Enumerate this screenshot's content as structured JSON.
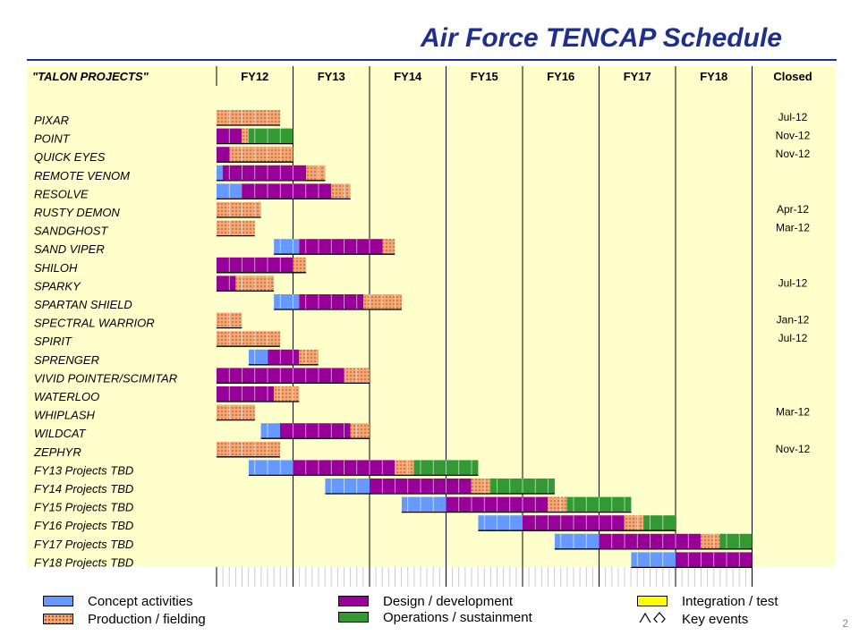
{
  "title": "Air Force TENCAP Schedule",
  "page_number": "2",
  "colors": {
    "title": "#1e2f8c",
    "background": "#ffffcc",
    "concept": "#6699ff",
    "design": "#990099",
    "production": "#f7a673",
    "ops": "#339933",
    "integration": "#ffff00"
  },
  "chart_data": {
    "type": "gantt",
    "header_label": "\"TALON PROJECTS\"",
    "columns": [
      "FY12",
      "FY13",
      "FY14",
      "FY15",
      "FY16",
      "FY17",
      "FY18"
    ],
    "closed_header": "Closed",
    "time_range": [
      0,
      7
    ],
    "time_unit": "fiscal years from start of FY12",
    "rows": [
      {
        "name": "PIXAR",
        "closed": "Jul-12",
        "segments": [
          {
            "phase": "production",
            "start": 0.0,
            "end": 0.83
          }
        ]
      },
      {
        "name": "POINT",
        "closed": "Nov-12",
        "segments": [
          {
            "phase": "design",
            "start": 0.0,
            "end": 0.33
          },
          {
            "phase": "production",
            "start": 0.33,
            "end": 0.42
          },
          {
            "phase": "ops",
            "start": 0.42,
            "end": 1.0
          }
        ]
      },
      {
        "name": "QUICK EYES",
        "closed": "Nov-12",
        "segments": [
          {
            "phase": "design",
            "start": 0.0,
            "end": 0.17
          },
          {
            "phase": "production",
            "start": 0.17,
            "end": 1.0
          }
        ]
      },
      {
        "name": "REMOTE VENOM",
        "closed": "",
        "segments": [
          {
            "phase": "concept",
            "start": 0.0,
            "end": 0.08
          },
          {
            "phase": "design",
            "start": 0.08,
            "end": 1.17
          },
          {
            "phase": "production",
            "start": 1.17,
            "end": 1.42
          }
        ]
      },
      {
        "name": "RESOLVE",
        "closed": "",
        "segments": [
          {
            "phase": "concept",
            "start": 0.0,
            "end": 0.33
          },
          {
            "phase": "design",
            "start": 0.33,
            "end": 1.5
          },
          {
            "phase": "production",
            "start": 1.5,
            "end": 1.75
          }
        ]
      },
      {
        "name": "RUSTY DEMON",
        "closed": "Apr-12",
        "segments": [
          {
            "phase": "production",
            "start": 0.0,
            "end": 0.58
          }
        ]
      },
      {
        "name": "SANDGHOST",
        "closed": "Mar-12",
        "segments": [
          {
            "phase": "production",
            "start": 0.0,
            "end": 0.5
          }
        ]
      },
      {
        "name": "SAND VIPER",
        "closed": "",
        "segments": [
          {
            "phase": "concept",
            "start": 0.75,
            "end": 1.08
          },
          {
            "phase": "design",
            "start": 1.08,
            "end": 2.17
          },
          {
            "phase": "production",
            "start": 2.17,
            "end": 2.33
          }
        ]
      },
      {
        "name": "SHILOH",
        "closed": "",
        "segments": [
          {
            "phase": "design",
            "start": 0.0,
            "end": 1.0
          },
          {
            "phase": "production",
            "start": 1.0,
            "end": 1.17
          }
        ]
      },
      {
        "name": "SPARKY",
        "closed": "Jul-12",
        "segments": [
          {
            "phase": "design",
            "start": 0.0,
            "end": 0.25
          },
          {
            "phase": "production",
            "start": 0.25,
            "end": 0.75
          }
        ]
      },
      {
        "name": "SPARTAN SHIELD",
        "closed": "",
        "segments": [
          {
            "phase": "concept",
            "start": 0.75,
            "end": 1.08
          },
          {
            "phase": "design",
            "start": 1.08,
            "end": 1.92
          },
          {
            "phase": "production",
            "start": 1.92,
            "end": 2.42
          }
        ]
      },
      {
        "name": "SPECTRAL WARRIOR",
        "closed": "Jan-12",
        "segments": [
          {
            "phase": "production",
            "start": 0.0,
            "end": 0.33
          }
        ]
      },
      {
        "name": "SPIRIT",
        "closed": "Jul-12",
        "segments": [
          {
            "phase": "production",
            "start": 0.0,
            "end": 0.83
          }
        ]
      },
      {
        "name": "SPRENGER",
        "closed": "",
        "segments": [
          {
            "phase": "concept",
            "start": 0.42,
            "end": 0.67
          },
          {
            "phase": "design",
            "start": 0.67,
            "end": 1.08
          },
          {
            "phase": "production",
            "start": 1.08,
            "end": 1.33
          }
        ]
      },
      {
        "name": "VIVID POINTER/SCIMITAR",
        "closed": "",
        "segments": [
          {
            "phase": "design",
            "start": 0.0,
            "end": 1.67
          },
          {
            "phase": "production",
            "start": 1.67,
            "end": 2.0
          }
        ]
      },
      {
        "name": "WATERLOO",
        "closed": "",
        "segments": [
          {
            "phase": "design",
            "start": 0.0,
            "end": 0.75
          },
          {
            "phase": "production",
            "start": 0.75,
            "end": 1.08
          }
        ]
      },
      {
        "name": "WHIPLASH",
        "closed": "Mar-12",
        "segments": [
          {
            "phase": "production",
            "start": 0.0,
            "end": 0.5
          }
        ]
      },
      {
        "name": "WILDCAT",
        "closed": "",
        "segments": [
          {
            "phase": "concept",
            "start": 0.58,
            "end": 0.83
          },
          {
            "phase": "design",
            "start": 0.83,
            "end": 1.75
          },
          {
            "phase": "production",
            "start": 1.75,
            "end": 2.0
          }
        ]
      },
      {
        "name": "ZEPHYR",
        "closed": "Nov-12",
        "segments": [
          {
            "phase": "production",
            "start": 0.0,
            "end": 0.83
          }
        ]
      },
      {
        "name": "FY13 Projects TBD",
        "closed": "",
        "segments": [
          {
            "phase": "concept",
            "start": 0.42,
            "end": 1.0
          },
          {
            "phase": "design",
            "start": 1.0,
            "end": 2.33
          },
          {
            "phase": "production",
            "start": 2.33,
            "end": 2.58
          },
          {
            "phase": "ops",
            "start": 2.58,
            "end": 3.42
          }
        ]
      },
      {
        "name": "FY14 Projects TBD",
        "closed": "",
        "segments": [
          {
            "phase": "concept",
            "start": 1.42,
            "end": 2.0
          },
          {
            "phase": "design",
            "start": 2.0,
            "end": 3.33
          },
          {
            "phase": "production",
            "start": 3.33,
            "end": 3.58
          },
          {
            "phase": "ops",
            "start": 3.58,
            "end": 4.42
          }
        ]
      },
      {
        "name": "FY15 Projects TBD",
        "closed": "",
        "segments": [
          {
            "phase": "concept",
            "start": 2.42,
            "end": 3.0
          },
          {
            "phase": "design",
            "start": 3.0,
            "end": 4.33
          },
          {
            "phase": "production",
            "start": 4.33,
            "end": 4.58
          },
          {
            "phase": "ops",
            "start": 4.58,
            "end": 5.42
          }
        ]
      },
      {
        "name": "FY16 Projects TBD",
        "closed": "",
        "segments": [
          {
            "phase": "concept",
            "start": 3.42,
            "end": 4.0
          },
          {
            "phase": "design",
            "start": 4.0,
            "end": 5.33
          },
          {
            "phase": "production",
            "start": 5.33,
            "end": 5.58
          },
          {
            "phase": "ops",
            "start": 5.58,
            "end": 6.0
          }
        ]
      },
      {
        "name": "FY17 Projects TBD",
        "closed": "",
        "segments": [
          {
            "phase": "concept",
            "start": 4.42,
            "end": 5.0
          },
          {
            "phase": "design",
            "start": 5.0,
            "end": 6.33
          },
          {
            "phase": "production",
            "start": 6.33,
            "end": 6.58
          },
          {
            "phase": "ops",
            "start": 6.58,
            "end": 7.0
          }
        ]
      },
      {
        "name": "FY18 Projects TBD",
        "closed": "",
        "segments": [
          {
            "phase": "concept",
            "start": 5.42,
            "end": 6.0
          },
          {
            "phase": "design",
            "start": 6.0,
            "end": 7.0
          }
        ]
      }
    ],
    "legend": [
      {
        "key": "concept",
        "label": "Concept activities"
      },
      {
        "key": "production",
        "label": "Production / fielding"
      },
      {
        "key": "design",
        "label": "Design / development"
      },
      {
        "key": "ops",
        "label": "Operations / sustainment"
      },
      {
        "key": "integration",
        "label": "Integration / test"
      },
      {
        "key": "keyevents",
        "label": "Key events",
        "icon": "triangle-diamond-icon"
      }
    ]
  }
}
